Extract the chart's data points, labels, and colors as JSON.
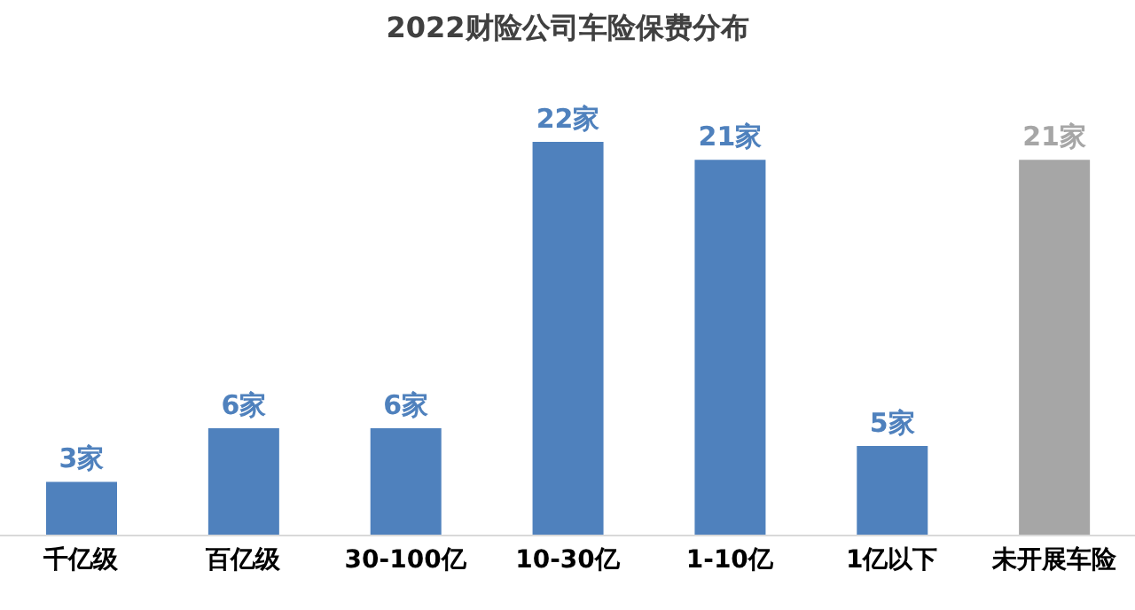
{
  "chart_data": {
    "type": "bar",
    "title": "2022财险公司车险保费分布",
    "categories": [
      "千亿级",
      "百亿级",
      "30-100亿",
      "10-30亿",
      "1-10亿",
      "1亿以下",
      "未开展车险"
    ],
    "values": [
      3,
      6,
      6,
      22,
      21,
      5,
      21
    ],
    "colors": [
      "#4f81bd",
      "#4f81bd",
      "#4f81bd",
      "#4f81bd",
      "#4f81bd",
      "#4f81bd",
      "#a6a6a6"
    ],
    "value_labels": [
      "3家",
      "6家",
      "6家",
      "22家",
      "21家",
      "5家",
      "21家"
    ],
    "grid": false,
    "legend": false
  }
}
